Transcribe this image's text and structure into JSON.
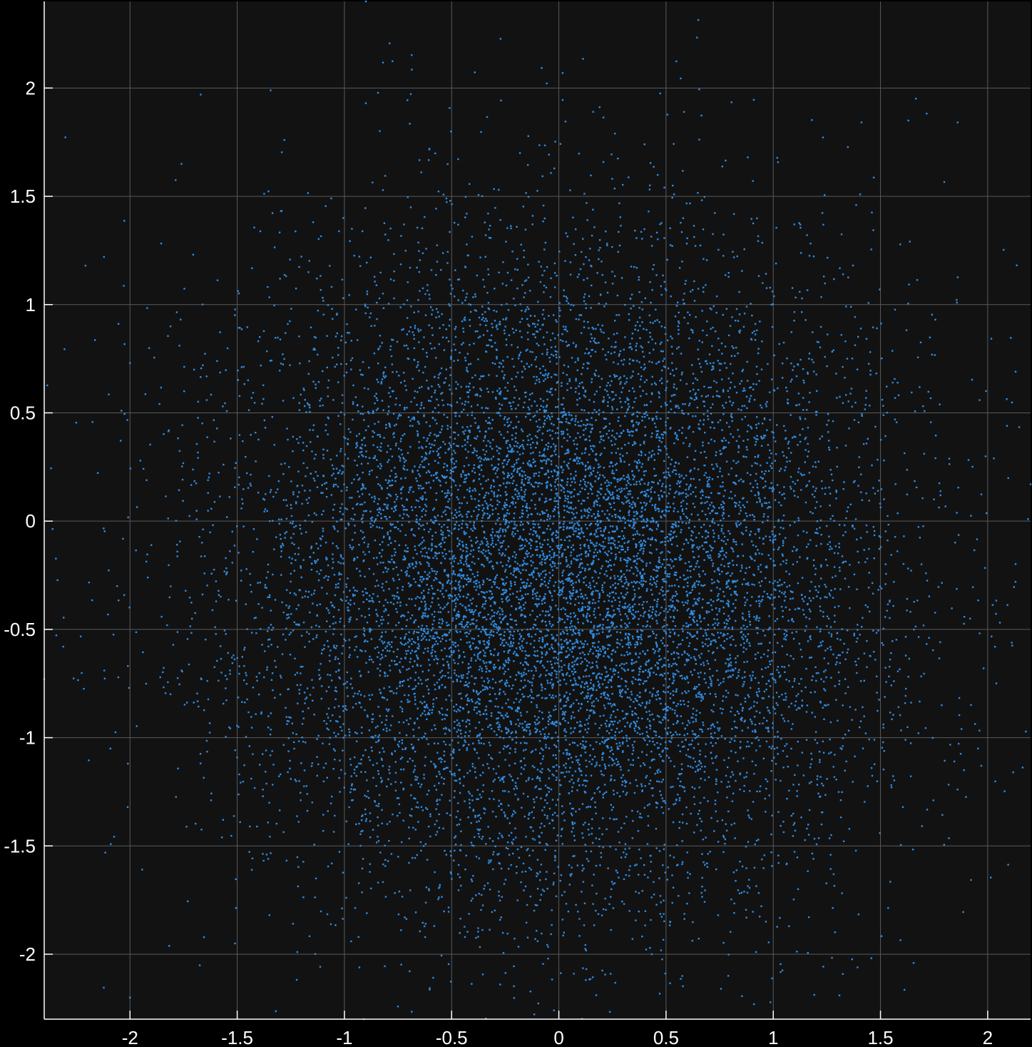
{
  "chart_data": {
    "type": "scatter",
    "title": "",
    "xlabel": "",
    "ylabel": "",
    "xlim": [
      -2.4,
      2.2
    ],
    "ylim": [
      -2.3,
      2.4
    ],
    "xticks": [
      -2,
      -1.5,
      -1,
      -0.5,
      0,
      0.5,
      1,
      1.5,
      2
    ],
    "yticks": [
      -2,
      -1.5,
      -1,
      -0.5,
      0,
      0.5,
      1,
      1.5,
      2
    ],
    "xtick_labels": [
      "-2",
      "-1.5",
      "-1",
      "-0.5",
      "0",
      "0.5",
      "1",
      "1.5",
      "2"
    ],
    "ytick_labels": [
      "-2",
      "-1.5",
      "-1",
      "-0.5",
      "0",
      "0.5",
      "1",
      "1.5",
      "2"
    ],
    "grid": true,
    "colors": {
      "background": "#000000",
      "plot_background": "#121212",
      "point": "#2f8be0",
      "grid": "#5a5a5a",
      "axis": "#ffffff"
    },
    "series": [
      {
        "point_count": 12000,
        "distribution": "gaussian",
        "mean": [
          0,
          -0.25
        ],
        "std": [
          0.75,
          0.75
        ],
        "sample_points": [
          [
            -0.9,
            2.4
          ],
          [
            -1.67,
            1.97
          ],
          [
            -0.9,
            1.93
          ],
          [
            0.16,
            1.89
          ],
          [
            1.63,
            1.85
          ],
          [
            -1.76,
            1.65
          ],
          [
            2.13,
            0.69
          ],
          [
            2.09,
            0.44
          ],
          [
            2.2,
            0.17
          ],
          [
            -2.0,
            0.73
          ],
          [
            -2.04,
            0.51
          ],
          [
            -2.06,
            -0.3
          ],
          [
            -2.12,
            -0.69
          ],
          [
            -2.4,
            -0.73
          ],
          [
            -2.01,
            -1.12
          ],
          [
            1.97,
            -1.13
          ],
          [
            1.89,
            -1.15
          ],
          [
            -1.22,
            -1.99
          ],
          [
            0.07,
            -2.09
          ],
          [
            0.79,
            -2.1
          ],
          [
            0.92,
            -1.99
          ],
          [
            -0.91,
            -2.3
          ],
          [
            -0.11,
            -1.93
          ],
          [
            0.4,
            1.74
          ],
          [
            -1.28,
            1.76
          ]
        ]
      }
    ]
  }
}
